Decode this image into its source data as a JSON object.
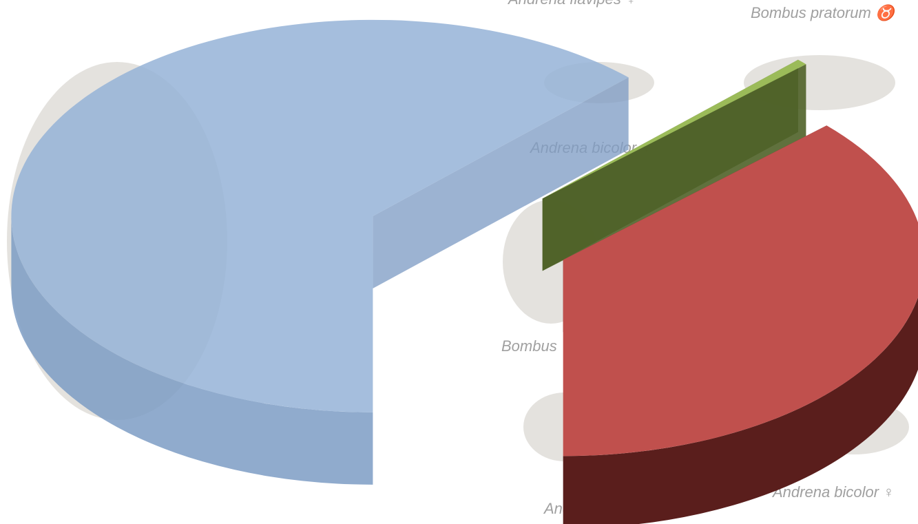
{
  "chart_data": {
    "type": "pie3d",
    "values": [
      62.5,
      0.5,
      37
    ],
    "colors": [
      "#95b3d7",
      "#9bbb59",
      "#c0504d"
    ],
    "side_colors": [
      "#7d9cc4",
      "#4f6228",
      "#5a1e1c"
    ],
    "annotations": [
      "Andrena flavipes ♀",
      "Bombus pratorum ♉",
      "Andrena bicolor ♀",
      "Bombus",
      "Andrena fulva ♀",
      "Andrena bicolor ♀"
    ]
  }
}
